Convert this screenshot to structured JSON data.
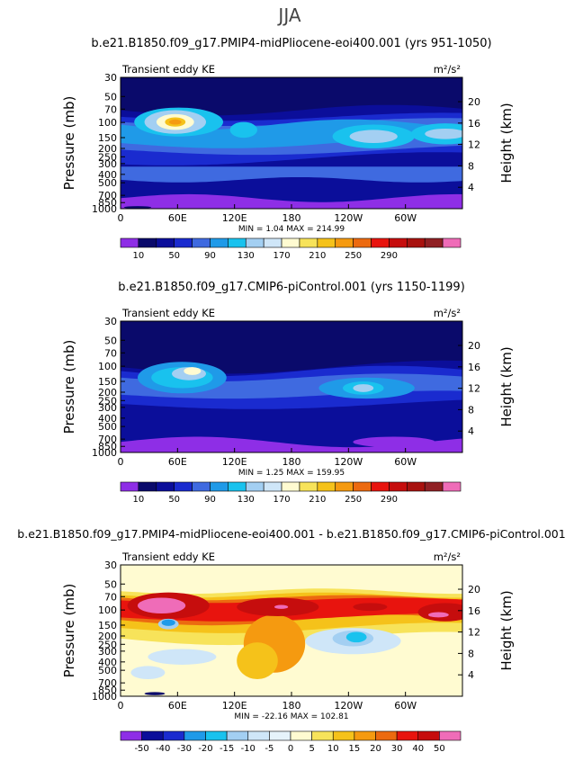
{
  "figure": {
    "title": "JJA"
  },
  "chart_data": [
    {
      "type": "contour",
      "title": "b.e21.B1850.f09_g17.PMIP4-midPliocene-eoi400.001 (yrs 951-1050)",
      "left_label": "Transient eddy KE",
      "units": "m²/s²",
      "ylabel": "Pressure (mb)",
      "ylabel_right": "Height (km)",
      "x_ticks": [
        "0",
        "60E",
        "120E",
        "180",
        "120W",
        "60W"
      ],
      "y_ticks": [
        "30",
        "50",
        "70",
        "100",
        "150",
        "200",
        "250",
        "300",
        "400",
        "500",
        "700",
        "850",
        "1000"
      ],
      "y_right_ticks": [
        "20",
        "16",
        "12",
        "8",
        "4"
      ],
      "min_max": "MIN =    1.04   MAX = 214.99",
      "colorbar_labels": [
        "10",
        "50",
        "90",
        "130",
        "170",
        "210",
        "250",
        "290"
      ],
      "colorbar_colors": [
        "#8e2ee6",
        "#0a0a6b",
        "#0b0e9a",
        "#1a2bcf",
        "#3f6ae0",
        "#1f9ae8",
        "#19c2ee",
        "#a3cff2",
        "#cfe6f8",
        "#fffbd1",
        "#f7e35a",
        "#f5c21a",
        "#f59a10",
        "#ec6a10",
        "#e8140e",
        "#c60d0d",
        "#a8120f",
        "#902024",
        "#ef6cb8"
      ]
    },
    {
      "type": "contour",
      "title": "b.e21.B1850.f09_g17.CMIP6-piControl.001 (yrs 1150-1199)",
      "left_label": "Transient eddy KE",
      "units": "m²/s²",
      "ylabel": "Pressure (mb)",
      "ylabel_right": "Height (km)",
      "x_ticks": [
        "0",
        "60E",
        "120E",
        "180",
        "120W",
        "60W"
      ],
      "y_ticks": [
        "30",
        "50",
        "70",
        "100",
        "150",
        "200",
        "250",
        "300",
        "400",
        "500",
        "700",
        "850",
        "1000"
      ],
      "y_right_ticks": [
        "20",
        "16",
        "12",
        "8",
        "4"
      ],
      "min_max": "MIN =    1.25   MAX = 159.95",
      "colorbar_labels": [
        "10",
        "50",
        "90",
        "130",
        "170",
        "210",
        "250",
        "290"
      ],
      "colorbar_colors": [
        "#8e2ee6",
        "#0a0a6b",
        "#0b0e9a",
        "#1a2bcf",
        "#3f6ae0",
        "#1f9ae8",
        "#19c2ee",
        "#a3cff2",
        "#cfe6f8",
        "#fffbd1",
        "#f7e35a",
        "#f5c21a",
        "#f59a10",
        "#ec6a10",
        "#e8140e",
        "#c60d0d",
        "#a8120f",
        "#902024",
        "#ef6cb8"
      ]
    },
    {
      "type": "contour",
      "title": "b.e21.B1850.f09_g17.PMIP4-midPliocene-eoi400.001 - b.e21.B1850.f09_g17.CMIP6-piControl.001",
      "left_label": "Transient eddy KE",
      "units": "m²/s²",
      "ylabel": "Pressure (mb)",
      "ylabel_right": "Height (km)",
      "x_ticks": [
        "0",
        "60E",
        "120E",
        "180",
        "120W",
        "60W"
      ],
      "y_ticks": [
        "30",
        "50",
        "70",
        "100",
        "150",
        "200",
        "250",
        "300",
        "400",
        "500",
        "700",
        "850",
        "1000"
      ],
      "y_right_ticks": [
        "20",
        "16",
        "12",
        "8",
        "4"
      ],
      "min_max": "MIN =  -22.16   MAX = 102.81",
      "colorbar_labels": [
        "-50",
        "-40",
        "-30",
        "-20",
        "-15",
        "-10",
        "-5",
        "0",
        "5",
        "10",
        "15",
        "20",
        "30",
        "40",
        "50"
      ],
      "colorbar_colors": [
        "#8e2ee6",
        "#0b0e9a",
        "#1a2bcf",
        "#1f9ae8",
        "#19c2ee",
        "#a3cff2",
        "#cfe6f8",
        "#e6f3fb",
        "#fffbd1",
        "#f7e35a",
        "#f5c21a",
        "#f59a10",
        "#ec6a10",
        "#e8140e",
        "#c60d0d",
        "#ef6cb8"
      ]
    }
  ]
}
